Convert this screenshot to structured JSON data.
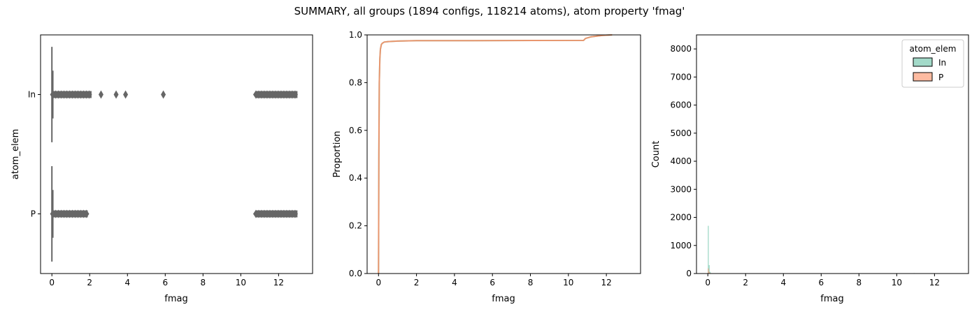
{
  "figure": {
    "title": "SUMMARY, all groups (1894 configs, 118214 atoms), atom property 'fmag'"
  },
  "colors": {
    "In": "#66c2a5",
    "P": "#fc8d62",
    "box_gray": "#666666"
  },
  "chart_data": [
    {
      "type": "box",
      "orientation": "horizontal",
      "xlabel": "fmag",
      "ylabel": "atom_elem",
      "xlim": [
        -0.6,
        13.8
      ],
      "xticks": [
        "0",
        "2",
        "4",
        "6",
        "8",
        "10",
        "12"
      ],
      "categories": [
        "In",
        "P"
      ],
      "groups": [
        {
          "name": "In",
          "whisker_low": 0.0,
          "whisker_high": 0.05,
          "outliers_dense": [
            [
              0.05,
              2.1
            ],
            [
              10.8,
              13.0
            ]
          ],
          "outliers": [
            2.6,
            3.4,
            3.9,
            5.9
          ]
        },
        {
          "name": "P",
          "whisker_low": 0.0,
          "whisker_high": 0.05,
          "outliers_dense": [
            [
              0.05,
              1.9
            ],
            [
              10.8,
              13.0
            ]
          ],
          "outliers": []
        }
      ]
    },
    {
      "type": "line",
      "subtype": "ecdf",
      "xlabel": "fmag",
      "ylabel": "Proportion",
      "xlim": [
        -0.6,
        13.8
      ],
      "ylim": [
        0,
        1.0
      ],
      "xticks": [
        "0",
        "2",
        "4",
        "6",
        "8",
        "10",
        "12"
      ],
      "yticks": [
        "0.0",
        "0.2",
        "0.4",
        "0.6",
        "0.8",
        "1.0"
      ],
      "series": [
        {
          "name": "In",
          "x": [
            0.0,
            0.02,
            0.04,
            0.07,
            0.1,
            0.15,
            0.2,
            0.3,
            0.5,
            1.0,
            2.0,
            5.0,
            10.8,
            10.9,
            11.2,
            11.8,
            12.3
          ],
          "y": [
            0.0,
            0.5,
            0.8,
            0.9,
            0.94,
            0.96,
            0.965,
            0.97,
            0.972,
            0.974,
            0.976,
            0.976,
            0.977,
            0.985,
            0.992,
            0.998,
            1.0
          ]
        },
        {
          "name": "P",
          "x": [
            0.0,
            0.02,
            0.04,
            0.07,
            0.1,
            0.15,
            0.2,
            0.3,
            0.5,
            1.0,
            2.0,
            5.0,
            10.8,
            10.9,
            11.2,
            11.8,
            12.3
          ],
          "y": [
            0.0,
            0.5,
            0.8,
            0.9,
            0.94,
            0.96,
            0.965,
            0.97,
            0.972,
            0.974,
            0.976,
            0.976,
            0.977,
            0.985,
            0.992,
            0.998,
            1.0
          ]
        }
      ]
    },
    {
      "type": "histogram",
      "xlabel": "fmag",
      "ylabel": "Count",
      "xlim": [
        -0.6,
        13.8
      ],
      "ylim": [
        0,
        8500
      ],
      "xticks": [
        "0",
        "2",
        "4",
        "6",
        "8",
        "10",
        "12"
      ],
      "yticks": [
        "0",
        "1000",
        "2000",
        "3000",
        "4000",
        "5000",
        "6000",
        "7000",
        "8000"
      ],
      "legend": {
        "title": "atom_elem",
        "entries": [
          "In",
          "P"
        ],
        "position": "upper right"
      },
      "series": [
        {
          "name": "In",
          "bins": [
            [
              0.0,
              0.05
            ],
            [
              0.05,
              0.1
            ],
            [
              0.1,
              0.15
            ],
            [
              10.9,
              10.95
            ]
          ],
          "counts": [
            1700,
            300,
            60,
            15
          ]
        },
        {
          "name": "P",
          "bins": [
            [
              0.0,
              0.05
            ],
            [
              0.05,
              0.1
            ],
            [
              0.1,
              0.15
            ],
            [
              12.6,
              12.65
            ]
          ],
          "counts": [
            180,
            60,
            20,
            12
          ]
        }
      ]
    }
  ]
}
